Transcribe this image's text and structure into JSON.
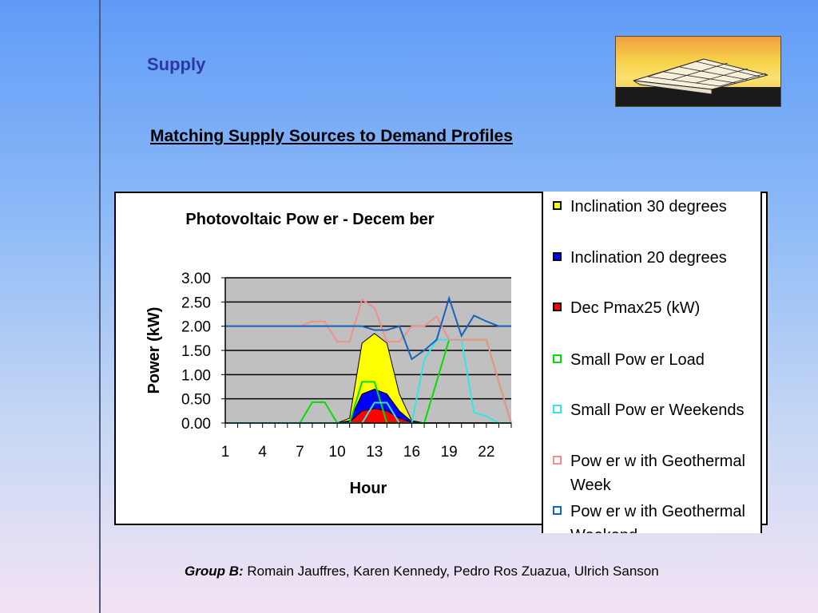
{
  "slide": {
    "title": "Supply",
    "subtitle": "Matching Supply Sources to Demand Profiles",
    "footer_label": "Group B:",
    "footer_names": " Romain Jauffres, Karen Kennedy, Pedro Ros Zuazua, Ulrich Sanson"
  },
  "chart_data": {
    "type": "area",
    "title": "Photovoltaic Pow er - Decem ber",
    "xlabel": "Hour",
    "ylabel": "Power (kW)",
    "x": [
      1,
      2,
      3,
      4,
      5,
      6,
      7,
      8,
      9,
      10,
      11,
      12,
      13,
      14,
      15,
      16,
      17,
      18,
      19,
      20,
      21,
      22,
      23,
      24
    ],
    "x_tick_labels": [
      "1",
      "4",
      "7",
      "10",
      "13",
      "16",
      "19",
      "22"
    ],
    "y_tick_labels": [
      "3.00",
      "2.50",
      "2.00",
      "1.50",
      "1.00",
      "0.50",
      "0.00"
    ],
    "ylim": [
      0,
      3
    ],
    "grid": true,
    "series": [
      {
        "name": "Inclination 30 degrees",
        "kind": "area",
        "color": "#ffff00",
        "values": [
          0,
          0,
          0,
          0,
          0,
          0,
          0,
          0,
          0,
          0,
          0.1,
          1.65,
          1.85,
          1.65,
          0.6,
          0.05,
          0,
          0,
          0,
          0,
          0,
          0,
          0,
          0
        ]
      },
      {
        "name": "Inclination 20 degrees",
        "kind": "area",
        "color": "#0000ff",
        "values": [
          0,
          0,
          0,
          0,
          0,
          0,
          0,
          0,
          0,
          0,
          0.05,
          0.6,
          0.7,
          0.6,
          0.25,
          0.03,
          0,
          0,
          0,
          0,
          0,
          0,
          0,
          0
        ]
      },
      {
        "name": "Dec Pmax25 (kW)",
        "kind": "area",
        "color": "#ff0000",
        "values": [
          0,
          0,
          0,
          0,
          0,
          0,
          0,
          0,
          0,
          0,
          0.02,
          0.25,
          0.3,
          0.25,
          0.1,
          0.01,
          0,
          0,
          0,
          0,
          0,
          0,
          0,
          0
        ]
      },
      {
        "name": "Small Pow er Load",
        "kind": "line",
        "color": "#00e000",
        "values": [
          0,
          0,
          0,
          0,
          0,
          0,
          0,
          0.43,
          0.43,
          0,
          0,
          0.85,
          0.85,
          0,
          0,
          0,
          0,
          0.85,
          1.72,
          1.72,
          1.72,
          1.72,
          0.85,
          0
        ]
      },
      {
        "name": "Small Pow er Weekends",
        "kind": "line",
        "color": "#33e6e6",
        "values": [
          0,
          0,
          0,
          0,
          0,
          0,
          0,
          0,
          0,
          0,
          0,
          0,
          0.42,
          0.42,
          0,
          0,
          1.3,
          1.72,
          1.72,
          1.72,
          0.22,
          0.14,
          0,
          0
        ]
      },
      {
        "name": "Pow er w ith Geothermal Week",
        "kind": "line",
        "color": "#f09088",
        "values": [
          2.0,
          2.0,
          2.0,
          2.0,
          2.0,
          2.0,
          2.0,
          2.1,
          2.1,
          1.68,
          1.68,
          2.55,
          2.38,
          1.68,
          1.68,
          2.0,
          2.0,
          2.2,
          1.72,
          1.72,
          1.72,
          1.72,
          0.85,
          0
        ]
      },
      {
        "name": "Pow er w ith Geothermal Weekend",
        "kind": "line",
        "color": "#1464c0",
        "values": [
          2.0,
          2.0,
          2.0,
          2.0,
          2.0,
          2.0,
          2.0,
          2.0,
          2.0,
          2.0,
          2.0,
          2.0,
          1.92,
          1.92,
          2.0,
          1.32,
          1.5,
          1.72,
          2.58,
          1.8,
          2.22,
          2.1,
          2.0,
          2.0
        ]
      }
    ]
  }
}
